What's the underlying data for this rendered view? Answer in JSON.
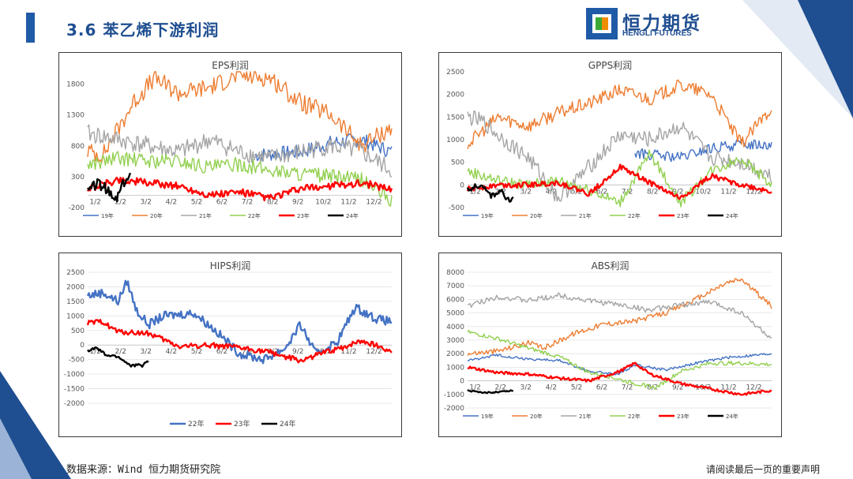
{
  "header": {
    "title": "3.6 苯乙烯下游利润",
    "logo_cn": "恒力期货",
    "logo_en": "HENGLI FUTURES"
  },
  "footer": {
    "source": "数据来源：Wind  恒力期货研究院",
    "disclaimer": "请阅读最后一页的重要声明"
  },
  "colors": {
    "accent": "#1f5aa6",
    "brand_green": "#3aaa35",
    "brand_orange": "#f08c00"
  },
  "chart_data": [
    {
      "id": "eps",
      "type": "line",
      "title": "EPS利润",
      "ylim": [
        -200,
        2000
      ],
      "yticks": [
        -200,
        300,
        800,
        1300,
        1800
      ],
      "xticks": [
        "1/2",
        "2/2",
        "3/2",
        "4/2",
        "5/2",
        "6/2",
        "7/2",
        "8/2",
        "9/2",
        "10/2",
        "11/2",
        "12/2"
      ],
      "legend_position": "bottom",
      "series": [
        {
          "name": "19年",
          "color": "#4472c4",
          "values": [
            null,
            null,
            null,
            null,
            null,
            null,
            null,
            null,
            null,
            null,
            null,
            null,
            null,
            null,
            null,
            null,
            null,
            null,
            null,
            null,
            null,
            null,
            null,
            null,
            null,
            null,
            null,
            null,
            null,
            null,
            null,
            null,
            null,
            null,
            null,
            null,
            null,
            null,
            null,
            null,
            null,
            null,
            null,
            null,
            null,
            null,
            null,
            null,
            null,
            null,
            null,
            null,
            null,
            null,
            null,
            null,
            null,
            null,
            null,
            null,
            null,
            null,
            null,
            null,
            null,
            null,
            null,
            null,
            null,
            null,
            null,
            null,
            null,
            null,
            null,
            null,
            null,
            null,
            null,
            null,
            null,
            null,
            null,
            null,
            null,
            null,
            null,
            null,
            null,
            null,
            null,
            null,
            null,
            null,
            null,
            null,
            null,
            null,
            null,
            null,
            null,
            null,
            null,
            null,
            null,
            null,
            null,
            null,
            null,
            null,
            null,
            null,
            null,
            null,
            null,
            null,
            null,
            null,
            null,
            null,
            null,
            null,
            null,
            null,
            null,
            null,
            null,
            null,
            null,
            null,
            null,
            null,
            null,
            null,
            null,
            null,
            null,
            null,
            null,
            null,
            null,
            null,
            null,
            null,
            null,
            null,
            null,
            null,
            null,
            null,
            null,
            null,
            null,
            null,
            null,
            null,
            null,
            null,
            null,
            null,
            null,
            null,
            null,
            null,
            null,
            null,
            null,
            null,
            null,
            null,
            null,
            null,
            null,
            null,
            null,
            null,
            null,
            null,
            null,
            null,
            null,
            null,
            null,
            null,
            null,
            null,
            null,
            null,
            null,
            null,
            null,
            null,
            null,
            null,
            null,
            null,
            null,
            null,
            null,
            null,
            null,
            null,
            null,
            null,
            null,
            null,
            null,
            null,
            null,
            null,
            null,
            null,
            null,
            null,
            null,
            null,
            null,
            null,
            null,
            null,
            null,
            null,
            null,
            null,
            null,
            null,
            null,
            null,
            null,
            null,
            null,
            null,
            null,
            null,
            null,
            null,
            null,
            null,
            null,
            null,
            null,
            null,
            null,
            null,
            null,
            null,
            null,
            null,
            null,
            null,
            null,
            null,
            null,
            null,
            null,
            null,
            null,
            null,
            null,
            null,
            null,
            null,
            null,
            null,
            null,
            null,
            null,
            null,
            null,
            null,
            null,
            null,
            null,
            null,
            null,
            null,
            null,
            null,
            null,
            null,
            null,
            null,
            null,
            null,
            null,
            null,
            null,
            null,
            null,
            null,
            null,
            null,
            null,
            null,
            null,
            null,
            null,
            null,
            null,
            null,
            null,
            null,
            null,
            null,
            null,
            null,
            null,
            null,
            null,
            null,
            null,
            null,
            null,
            null,
            null,
            null,
            null,
            null,
            null,
            null,
            null,
            null,
            null,
            null,
            null,
            null,
            null,
            null,
            null,
            null,
            null,
            null,
            null,
            null,
            null,
            null,
            null,
            null,
            null,
            null,
            null,
            null,
            null,
            null,
            null,
            null,
            null,
            null,
            null,
            null,
            null,
            null,
            null,
            null,
            null,
            null,
            null,
            null,
            null,
            null,
            null,
            null,
            null,
            null,
            null,
            null,
            null,
            null,
            null,
            null,
            null,
            null,
            null,
            null,
            null,
            null,
            null,
            null,
            null,
            null,
            null,
            null,
            null,
            null,
            null,
            null,
            null,
            null,
            null
          ]
        },
        {
          "name": "20年",
          "color": "#ed7d31",
          "values": []
        },
        {
          "name": "21年",
          "color": "#a5a5a5",
          "values": []
        },
        {
          "name": "22年",
          "color": "#92d050",
          "values": []
        },
        {
          "name": "23年",
          "color": "#ff0000",
          "values": []
        },
        {
          "name": "24年",
          "color": "#000000",
          "values": []
        }
      ]
    },
    {
      "id": "gpps",
      "type": "line",
      "title": "GPPS利润",
      "ylim": [
        -500,
        2500
      ],
      "yticks": [
        -500,
        0,
        500,
        1000,
        1500,
        2000,
        2500
      ],
      "xticks": [
        "1/2",
        "2/2",
        "3/2",
        "4/2",
        "5/2",
        "6/2",
        "7/2",
        "8/2",
        "9/2",
        "10/2",
        "11/2",
        "12/2"
      ],
      "legend_position": "bottom",
      "series": [
        {
          "name": "19年",
          "color": "#4472c4"
        },
        {
          "name": "20年",
          "color": "#ed7d31"
        },
        {
          "name": "21年",
          "color": "#a5a5a5"
        },
        {
          "name": "22年",
          "color": "#92d050"
        },
        {
          "name": "23年",
          "color": "#ff0000"
        },
        {
          "name": "24年",
          "color": "#000000"
        }
      ]
    },
    {
      "id": "hips",
      "type": "line",
      "title": "HIPS利润",
      "ylim": [
        -2000,
        2500
      ],
      "yticks": [
        -2000,
        -1500,
        -1000,
        -500,
        0,
        500,
        1000,
        1500,
        2000,
        2500
      ],
      "xticks": [
        "1/2",
        "2/2",
        "3/2",
        "4/2",
        "5/2",
        "6/2",
        "7/2",
        "8/2",
        "9/2",
        "10/2",
        "11/2",
        "12/2"
      ],
      "legend_position": "bottom",
      "series": [
        {
          "name": "22年",
          "color": "#4472c4"
        },
        {
          "name": "23年",
          "color": "#ff0000"
        },
        {
          "name": "24年",
          "color": "#000000"
        }
      ]
    },
    {
      "id": "abs",
      "type": "line",
      "title": "ABS利润",
      "ylim": [
        -2000,
        8000
      ],
      "yticks": [
        -2000,
        -1000,
        0,
        1000,
        2000,
        3000,
        4000,
        5000,
        6000,
        7000,
        8000
      ],
      "xticks": [
        "1/2",
        "2/2",
        "3/2",
        "4/2",
        "5/2",
        "6/2",
        "7/2",
        "8/2",
        "9/2",
        "10/2",
        "11/2",
        "12/2"
      ],
      "legend_position": "bottom",
      "series": [
        {
          "name": "19年",
          "color": "#4472c4"
        },
        {
          "name": "20年",
          "color": "#ed7d31"
        },
        {
          "name": "21年",
          "color": "#a5a5a5"
        },
        {
          "name": "22年",
          "color": "#92d050"
        },
        {
          "name": "23年",
          "color": "#ff0000"
        },
        {
          "name": "24年",
          "color": "#000000"
        }
      ]
    }
  ]
}
